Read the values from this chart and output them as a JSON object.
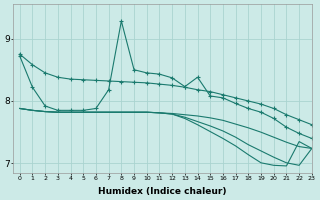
{
  "xlabel": "Humidex (Indice chaleur)",
  "bg_color": "#cceae7",
  "grid_color": "#aad4d0",
  "line_color": "#1a7a6e",
  "xlim": [
    -0.5,
    23
  ],
  "ylim": [
    6.85,
    9.55
  ],
  "yticks": [
    7,
    8,
    9
  ],
  "xticks": [
    0,
    1,
    2,
    3,
    4,
    5,
    6,
    7,
    8,
    9,
    10,
    11,
    12,
    13,
    14,
    15,
    16,
    17,
    18,
    19,
    20,
    21,
    22,
    23
  ],
  "line1_x": [
    0,
    1,
    2,
    3,
    4,
    5,
    6,
    7,
    8,
    9,
    10,
    11,
    12,
    13,
    14,
    15,
    16,
    17,
    18,
    19,
    20,
    21,
    22,
    23
  ],
  "line1_y": [
    8.75,
    8.58,
    8.45,
    8.38,
    8.35,
    8.34,
    8.33,
    8.32,
    8.31,
    8.3,
    8.29,
    8.27,
    8.25,
    8.22,
    8.18,
    8.15,
    8.1,
    8.05,
    8.0,
    7.95,
    7.88,
    7.78,
    7.7,
    7.62
  ],
  "line2_x": [
    0,
    1,
    2,
    3,
    4,
    5,
    6,
    7,
    8,
    9,
    10,
    11,
    12,
    13,
    14,
    15,
    16,
    17,
    18,
    19,
    20,
    21,
    22,
    23
  ],
  "line2_y": [
    8.72,
    8.22,
    7.92,
    7.85,
    7.85,
    7.85,
    7.88,
    8.18,
    9.28,
    8.5,
    8.45,
    8.43,
    8.37,
    8.23,
    8.38,
    8.08,
    8.05,
    7.96,
    7.88,
    7.82,
    7.72,
    7.58,
    7.48,
    7.4
  ],
  "line3_x": [
    0,
    1,
    2,
    3,
    4,
    5,
    6,
    7,
    8,
    9,
    10,
    11,
    12,
    13,
    14,
    15,
    16,
    17,
    18,
    19,
    20,
    21,
    22,
    23
  ],
  "line3_y": [
    7.88,
    7.85,
    7.83,
    7.82,
    7.82,
    7.82,
    7.82,
    7.82,
    7.82,
    7.82,
    7.82,
    7.81,
    7.8,
    7.78,
    7.76,
    7.73,
    7.69,
    7.63,
    7.57,
    7.5,
    7.42,
    7.34,
    7.27,
    7.24
  ],
  "line4_x": [
    0,
    1,
    2,
    3,
    4,
    5,
    6,
    7,
    8,
    9,
    10,
    11,
    12,
    13,
    14,
    15,
    16,
    17,
    18,
    19,
    20,
    21,
    22,
    23
  ],
  "line4_y": [
    7.88,
    7.85,
    7.83,
    7.82,
    7.82,
    7.82,
    7.82,
    7.82,
    7.82,
    7.82,
    7.82,
    7.81,
    7.79,
    7.74,
    7.67,
    7.6,
    7.52,
    7.42,
    7.3,
    7.2,
    7.1,
    7.01,
    6.97,
    7.24
  ],
  "line5_x": [
    0,
    1,
    2,
    3,
    4,
    5,
    6,
    7,
    8,
    9,
    10,
    11,
    12,
    13,
    14,
    15,
    16,
    17,
    18,
    19,
    20,
    21,
    22,
    23
  ],
  "line5_y": [
    7.88,
    7.85,
    7.83,
    7.82,
    7.82,
    7.82,
    7.82,
    7.82,
    7.82,
    7.82,
    7.82,
    7.81,
    7.79,
    7.72,
    7.62,
    7.51,
    7.4,
    7.28,
    7.14,
    7.01,
    6.97,
    6.96,
    7.35,
    7.24
  ]
}
